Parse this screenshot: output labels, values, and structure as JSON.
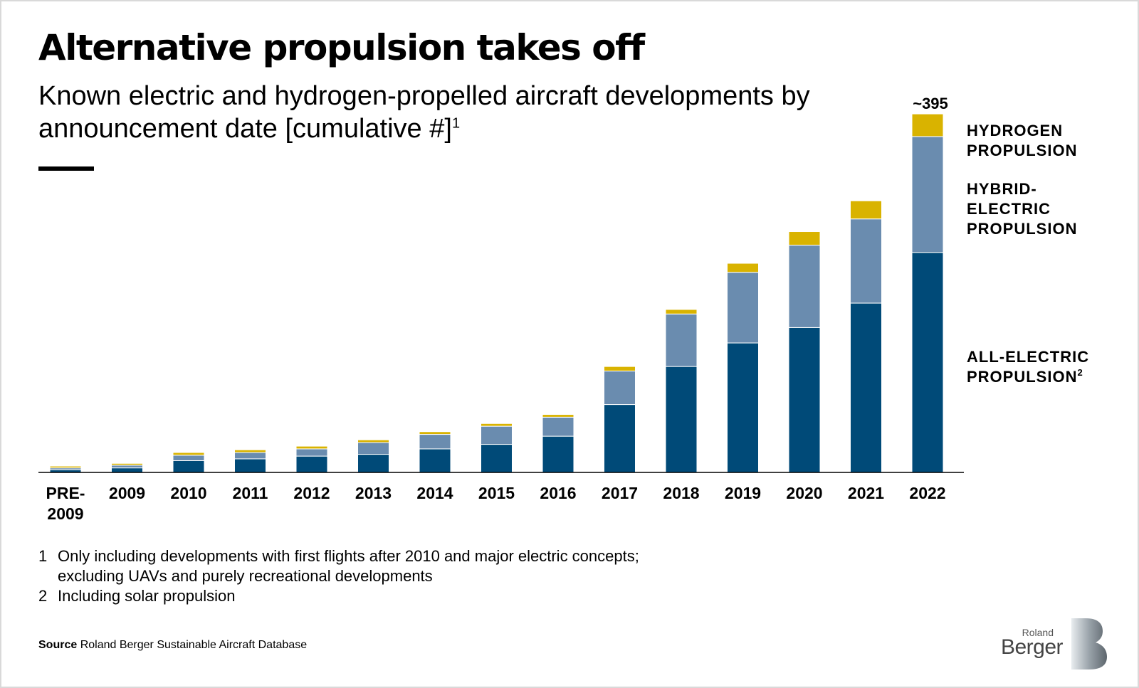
{
  "header": {
    "title": "Alternative propulsion takes off",
    "subtitle": "Known electric and hydrogen-propelled aircraft developments by announcement date [cumulative #]",
    "subtitle_footnote": "1"
  },
  "chart_data": {
    "type": "bar",
    "stacked": true,
    "categories": [
      "PRE-2009",
      "2009",
      "2010",
      "2011",
      "2012",
      "2013",
      "2014",
      "2015",
      "2016",
      "2017",
      "2018",
      "2019",
      "2020",
      "2021",
      "2022"
    ],
    "category_lines": [
      [
        "PRE-",
        "2009"
      ],
      [
        "2009"
      ],
      [
        "2010"
      ],
      [
        "2011"
      ],
      [
        "2012"
      ],
      [
        "2013"
      ],
      [
        "2014"
      ],
      [
        "2015"
      ],
      [
        "2016"
      ],
      [
        "2017"
      ],
      [
        "2018"
      ],
      [
        "2019"
      ],
      [
        "2020"
      ],
      [
        "2021"
      ],
      [
        "2022"
      ]
    ],
    "series": [
      {
        "name": "ALL-ELECTRIC PROPULSION",
        "footnote": "2",
        "color": "#004a78",
        "values": [
          3,
          5,
          13,
          15,
          18,
          20,
          26,
          31,
          40,
          75,
          117,
          143,
          160,
          187,
          243
        ]
      },
      {
        "name": "HYBRID-ELECTRIC PROPULSION",
        "color": "#6a8caf",
        "values": [
          2,
          3,
          6,
          7,
          8,
          13,
          16,
          20,
          21,
          37,
          58,
          78,
          91,
          93,
          128
        ]
      },
      {
        "name": "HYDROGEN PROPULSION",
        "color": "#d9b300",
        "values": [
          2,
          2,
          3,
          3,
          3,
          3,
          3,
          3,
          3,
          5,
          5,
          10,
          15,
          20,
          25
        ]
      }
    ],
    "legend_lines": [
      [
        "HYDROGEN",
        "PROPULSION"
      ],
      [
        "HYBRID-",
        "ELECTRIC",
        "PROPULSION"
      ],
      [
        "ALL-ELECTRIC",
        "PROPULSION"
      ]
    ],
    "annotations": [
      {
        "category": "2022",
        "text": "~395"
      }
    ],
    "ylim": [
      0,
      400
    ],
    "grid": false,
    "legend_position": "right"
  },
  "footnotes": [
    {
      "num": "1",
      "text": "Only including developments with first flights after 2010 and major electric concepts; excluding UAVs and purely recreational developments"
    },
    {
      "num": "2",
      "text": "Including solar propulsion"
    }
  ],
  "source": {
    "label": "Source",
    "text": "Roland Berger Sustainable Aircraft Database"
  },
  "logo": {
    "line1": "Roland",
    "line2": "Berger"
  }
}
